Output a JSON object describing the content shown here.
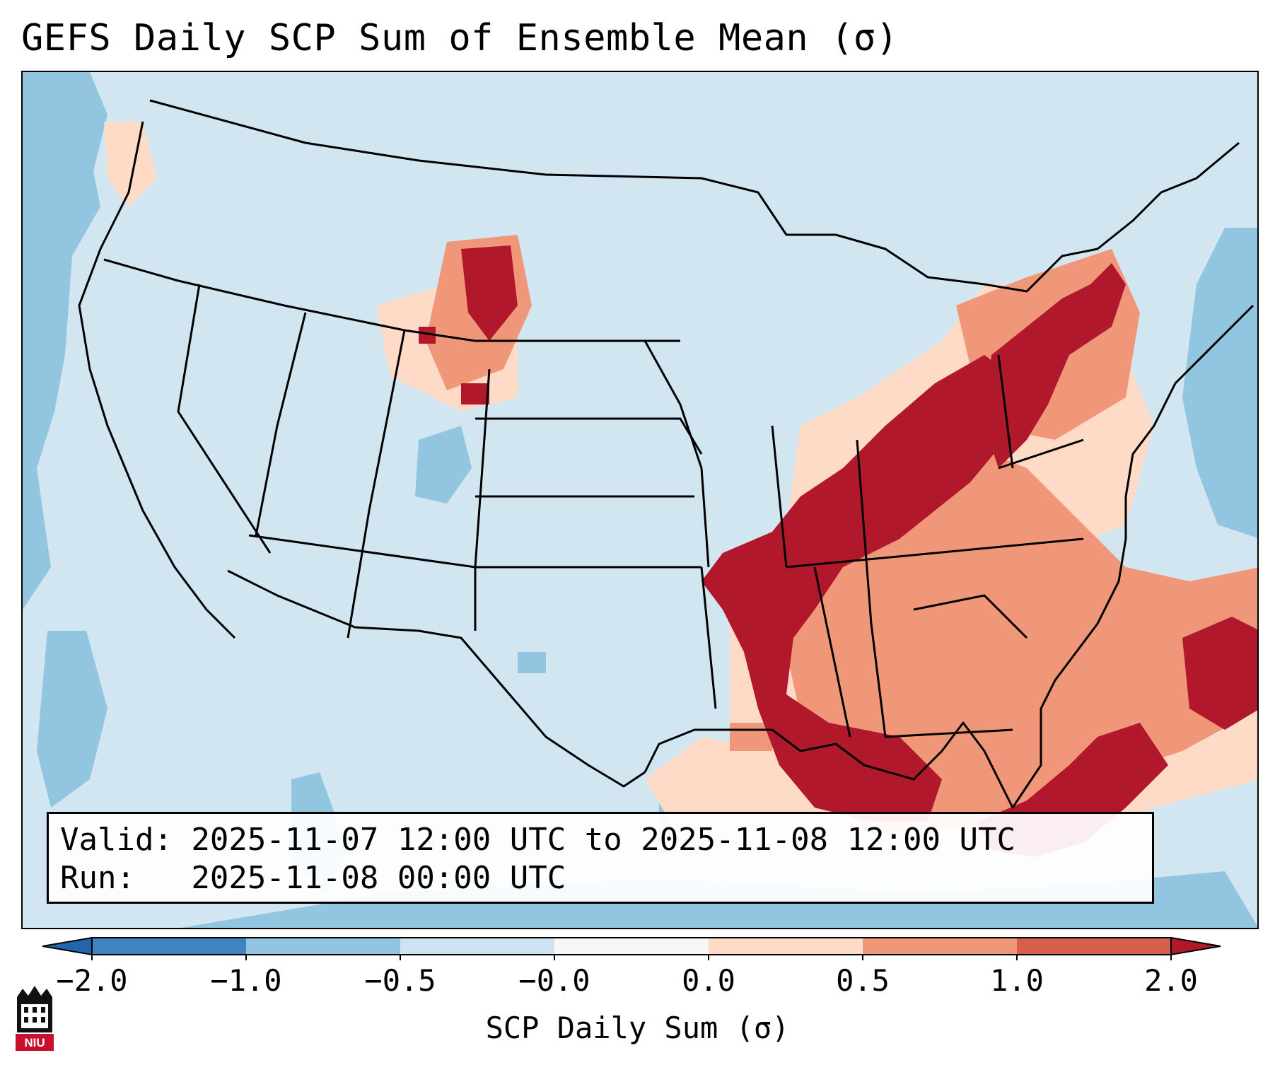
{
  "title": "GEFS Daily SCP Sum of Ensemble Mean (σ)",
  "info": {
    "valid_line": "Valid: 2025-11-07 12:00 UTC to 2025-11-08 12:00 UTC",
    "run_line": "Run:   2025-11-08 00:00 UTC"
  },
  "colorbar": {
    "label": "SCP Daily Sum (σ)",
    "ticks": [
      "−2.0",
      "−1.0",
      "−0.5",
      "−0.0",
      "0.0",
      "0.5",
      "1.0",
      "2.0"
    ],
    "colors": [
      "#3f83bf",
      "#92c5df",
      "#cde3ef",
      "#f7f7f7",
      "#fddbc7",
      "#f0977a",
      "#d6604d",
      "#b2182b"
    ],
    "extend_low_color": "#2166ac",
    "extend_high_color": "#b2182b"
  },
  "map": {
    "background_color": "#d2e6f1",
    "region": "Contiguous United States"
  },
  "logo": {
    "text": "NIU"
  }
}
